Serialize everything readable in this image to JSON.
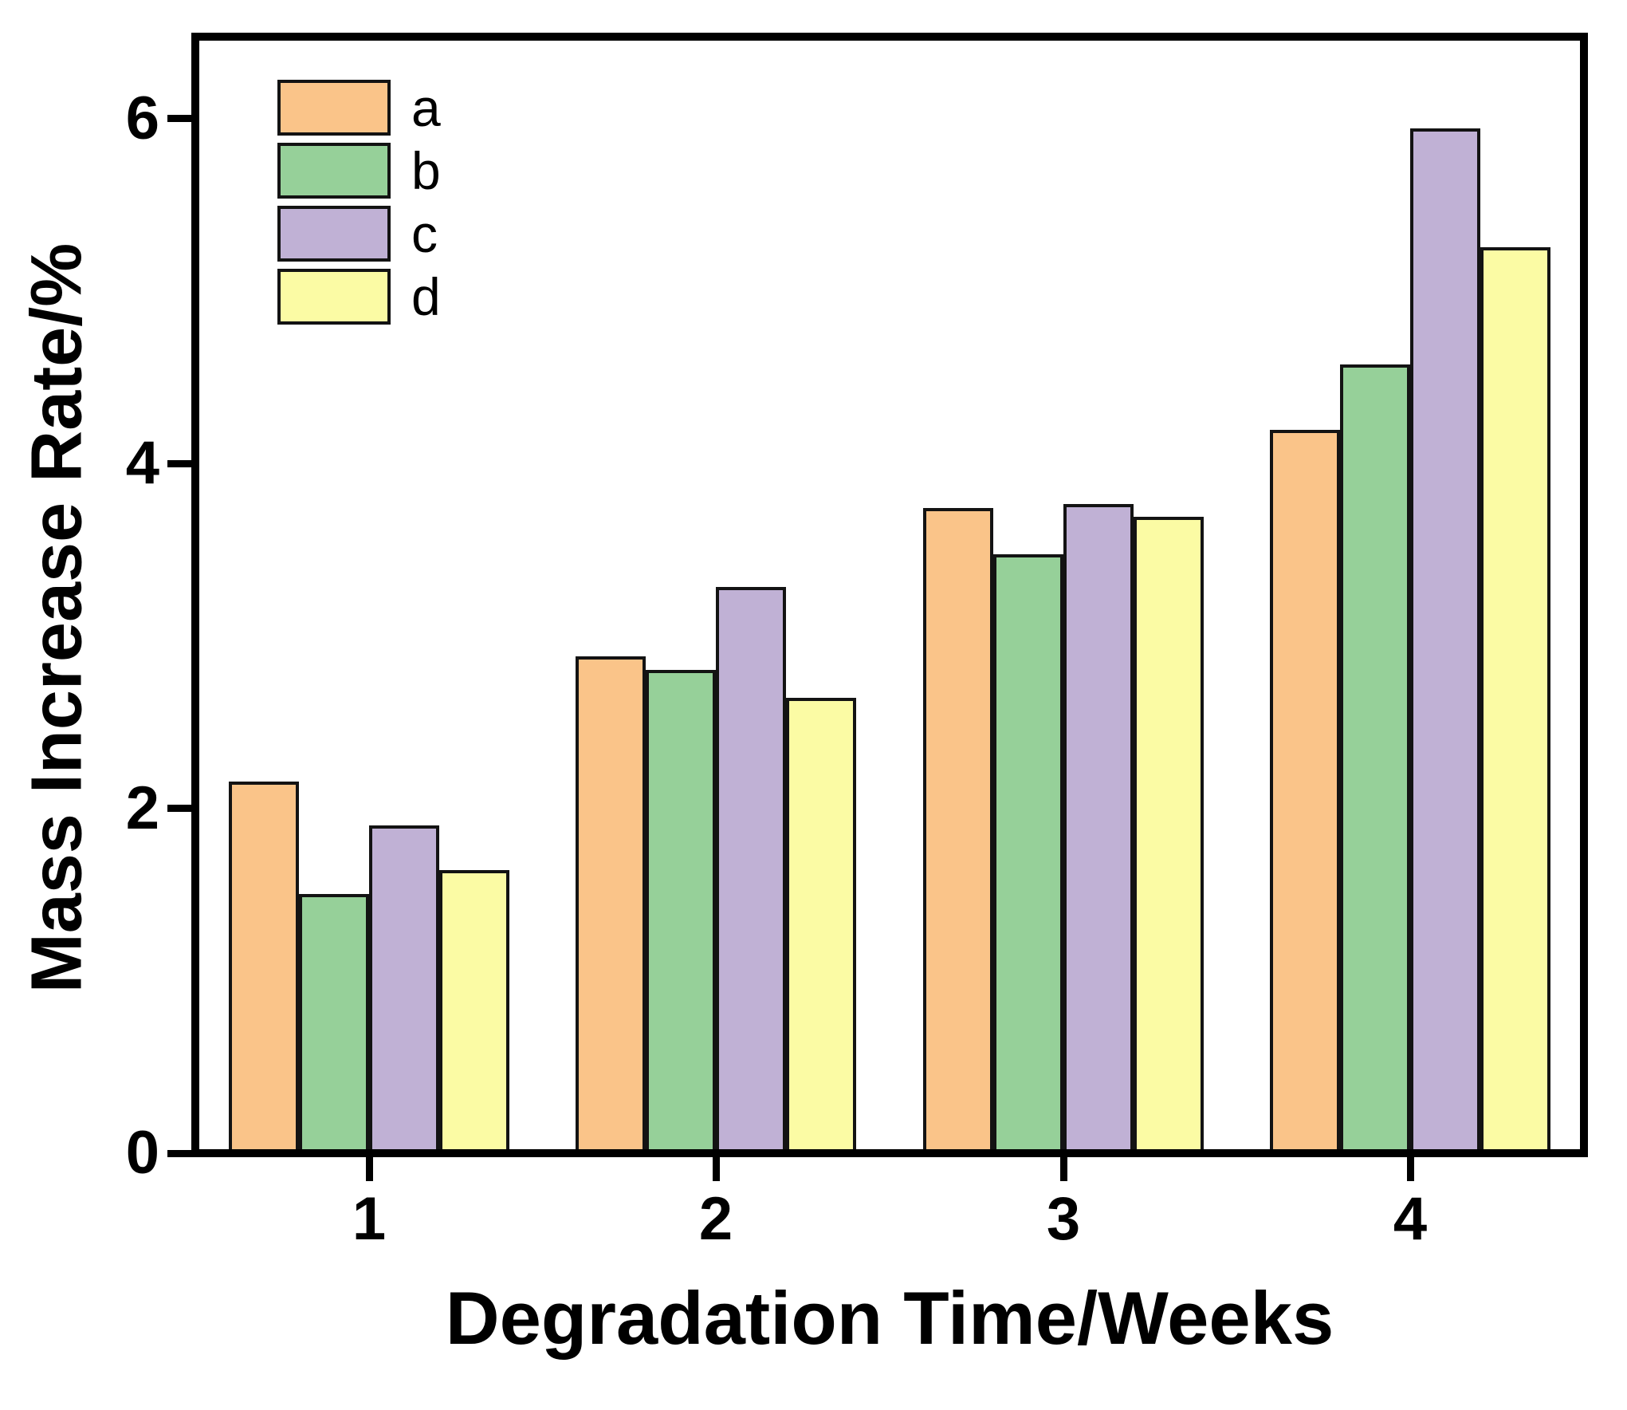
{
  "chart_data": {
    "type": "bar",
    "title": "",
    "xlabel": "Degradation Time/Weeks",
    "ylabel": "Mass Increase Rate/%",
    "categories": [
      "1",
      "2",
      "3",
      "4"
    ],
    "series": [
      {
        "name": "a",
        "color": "#FAC489",
        "values": [
          2.13,
          2.86,
          3.72,
          4.17
        ]
      },
      {
        "name": "b",
        "color": "#96D099",
        "values": [
          1.48,
          2.78,
          3.45,
          4.55
        ]
      },
      {
        "name": "c",
        "color": "#C0B1D5",
        "values": [
          1.88,
          3.26,
          3.74,
          5.92
        ]
      },
      {
        "name": "d",
        "color": "#FBFBA4",
        "values": [
          1.62,
          2.62,
          3.67,
          5.23
        ]
      }
    ],
    "y_ticks": [
      "0",
      "2",
      "4",
      "6"
    ],
    "y_tick_values": [
      0,
      2,
      4,
      6
    ],
    "ylim": [
      0,
      6.5
    ],
    "x_tick_values": [
      1,
      2,
      3,
      4
    ],
    "legend_position": "top-left",
    "grid": false,
    "frame": true,
    "bar_edge_color": "#131313",
    "axis_color": "#000000",
    "background_color": "#FFFFFF"
  }
}
